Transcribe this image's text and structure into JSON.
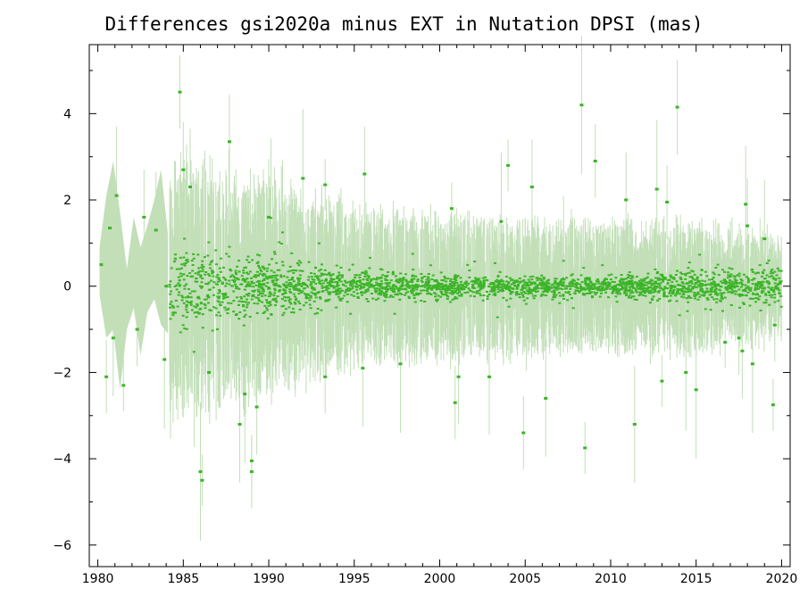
{
  "chart_data": {
    "type": "scatter",
    "title": "Differences gsi2020a minus EXT in Nutation DPSI (mas)",
    "xlabel": "",
    "ylabel": "",
    "xlim": [
      1979.5,
      2020.5
    ],
    "ylim": [
      -6.5,
      5.6
    ],
    "x_ticks": [
      1980,
      1985,
      1990,
      1995,
      2000,
      2005,
      2010,
      2015,
      2020
    ],
    "x_tick_labels": [
      "1980",
      "1985",
      "1990",
      "1995",
      "2000",
      "2005",
      "2010",
      "2015",
      "2020"
    ],
    "y_ticks": [
      -6,
      -4,
      -2,
      0,
      2,
      4
    ],
    "y_tick_labels": [
      "−6",
      "−4",
      "−2",
      "0",
      "2",
      "4"
    ],
    "grid": false,
    "colors": {
      "points": "#3cb428",
      "error_bars": "#c2dfb8",
      "axes": "#000000"
    },
    "error_band_early": [
      [
        1980.1,
        0.9
      ],
      [
        1980.5,
        2.1
      ],
      [
        1980.9,
        2.9
      ],
      [
        1981.3,
        1.7
      ],
      [
        1981.7,
        0.4
      ],
      [
        1982.1,
        1.6
      ],
      [
        1982.5,
        0.9
      ],
      [
        1982.9,
        1.4
      ],
      [
        1983.3,
        2.0
      ],
      [
        1983.7,
        2.7
      ],
      [
        1984.1,
        1.2
      ]
    ],
    "error_band_early_low": [
      [
        1980.1,
        -0.2
      ],
      [
        1980.5,
        -1.2
      ],
      [
        1980.9,
        -1.0
      ],
      [
        1981.3,
        -2.4
      ],
      [
        1981.7,
        -1.0
      ],
      [
        1982.1,
        -0.5
      ],
      [
        1982.5,
        -1.6
      ],
      [
        1982.9,
        -0.6
      ],
      [
        1983.3,
        -0.3
      ],
      [
        1983.7,
        -0.9
      ],
      [
        1984.1,
        -1.1
      ]
    ],
    "early_points": [
      [
        1980.2,
        0.5
      ],
      [
        1980.5,
        -2.1
      ],
      [
        1980.7,
        1.35
      ],
      [
        1980.9,
        -1.2
      ],
      [
        1981.1,
        2.1
      ],
      [
        1981.5,
        -2.3
      ],
      [
        1982.3,
        -1.0
      ],
      [
        1982.7,
        1.6
      ],
      [
        1983.4,
        1.3
      ],
      [
        1983.9,
        -1.7
      ],
      [
        1984.0,
        0.0
      ]
    ],
    "highlighted_points": [
      [
        1984.8,
        4.5
      ],
      [
        1985.0,
        2.7
      ],
      [
        1985.4,
        2.3
      ],
      [
        1986.0,
        -4.3
      ],
      [
        1986.1,
        -4.5
      ],
      [
        1986.5,
        -2.0
      ],
      [
        1987.7,
        3.35
      ],
      [
        1988.3,
        -3.2
      ],
      [
        1988.6,
        -2.5
      ],
      [
        1989.0,
        -4.05
      ],
      [
        1989.0,
        -4.3
      ],
      [
        1989.3,
        -2.8
      ],
      [
        1990.0,
        1.6
      ],
      [
        1992.0,
        2.5
      ],
      [
        1993.3,
        2.35
      ],
      [
        1993.3,
        -2.1
      ],
      [
        1995.6,
        2.6
      ],
      [
        1995.5,
        -1.9
      ],
      [
        1997.7,
        -1.8
      ],
      [
        2000.7,
        1.8
      ],
      [
        2000.9,
        -2.7
      ],
      [
        2001.1,
        -2.1
      ],
      [
        2002.9,
        -2.1
      ],
      [
        2003.6,
        1.5
      ],
      [
        2004.0,
        2.8
      ],
      [
        2004.9,
        -3.4
      ],
      [
        2005.4,
        2.3
      ],
      [
        2006.2,
        -2.6
      ],
      [
        2008.3,
        4.2
      ],
      [
        2008.5,
        -3.75
      ],
      [
        2009.1,
        2.9
      ],
      [
        2010.9,
        2.0
      ],
      [
        2011.4,
        -3.2
      ],
      [
        2012.7,
        2.25
      ],
      [
        2013.0,
        -2.2
      ],
      [
        2013.3,
        1.95
      ],
      [
        2013.9,
        4.15
      ],
      [
        2014.4,
        -2.0
      ],
      [
        2015.0,
        -2.4
      ],
      [
        2016.7,
        -1.3
      ],
      [
        2017.5,
        -1.2
      ],
      [
        2017.7,
        -1.5
      ],
      [
        2017.9,
        1.9
      ],
      [
        2018.3,
        -1.8
      ],
      [
        2019.5,
        -2.75
      ],
      [
        2019.6,
        -0.9
      ],
      [
        2018.0,
        1.4
      ],
      [
        2019.0,
        1.1
      ]
    ],
    "dense_series": {
      "x_range": [
        1984.2,
        2020.0
      ],
      "scatter_sd_profile": [
        [
          1984.2,
          0.75
        ],
        [
          1990.0,
          0.55
        ],
        [
          1995.0,
          0.28
        ],
        [
          2000.0,
          0.2
        ],
        [
          2010.0,
          0.2
        ],
        [
          2015.0,
          0.3
        ],
        [
          2020.0,
          0.35
        ]
      ],
      "errorbar_sd_profile": [
        [
          1984.2,
          1.6
        ],
        [
          1990.0,
          1.3
        ],
        [
          1995.0,
          1.0
        ],
        [
          2000.0,
          0.9
        ],
        [
          2010.0,
          0.85
        ],
        [
          2015.0,
          0.8
        ],
        [
          2020.0,
          0.6
        ]
      ]
    }
  }
}
